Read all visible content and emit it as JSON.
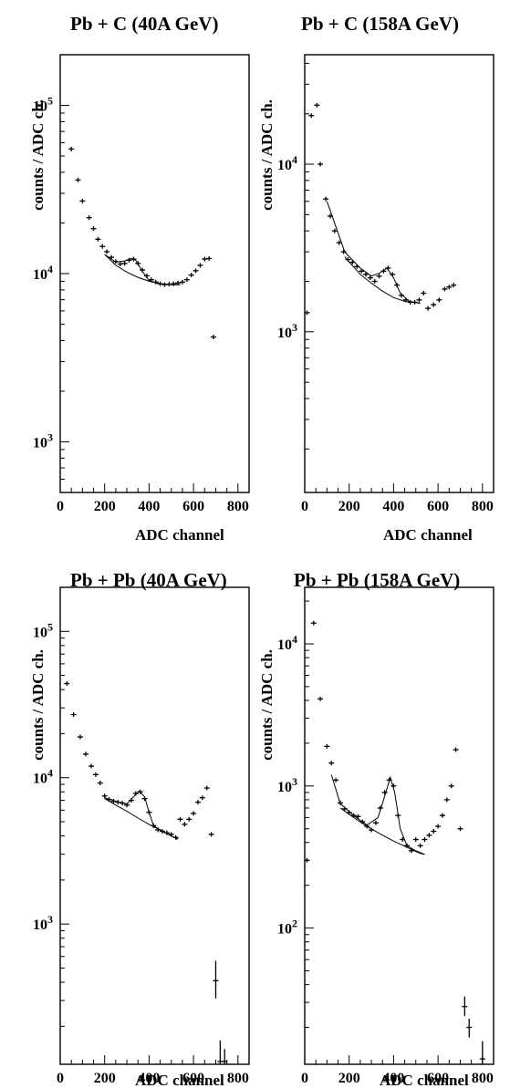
{
  "chart_data": [
    {
      "type": "scatter",
      "title": "Pb + C   (40A GeV)",
      "xlabel": "ADC channel",
      "ylabel": "counts / ADC ch.",
      "xlim": [
        0,
        850
      ],
      "ylim": [
        500,
        200000
      ],
      "yscale": "log",
      "xticks": [
        0,
        200,
        400,
        600,
        800
      ],
      "yticks": [
        {
          "value": 1000,
          "label": "10",
          "exp": "3"
        },
        {
          "value": 10000,
          "label": "10",
          "exp": "4"
        },
        {
          "value": 100000,
          "label": "10",
          "exp": "5"
        }
      ],
      "points": [
        {
          "x": 50,
          "y": 55000
        },
        {
          "x": 80,
          "y": 36000
        },
        {
          "x": 100,
          "y": 27000
        },
        {
          "x": 130,
          "y": 21500
        },
        {
          "x": 150,
          "y": 18500
        },
        {
          "x": 170,
          "y": 16000
        },
        {
          "x": 190,
          "y": 14500
        },
        {
          "x": 210,
          "y": 13500
        },
        {
          "x": 230,
          "y": 12500
        },
        {
          "x": 250,
          "y": 11800
        },
        {
          "x": 270,
          "y": 11400
        },
        {
          "x": 290,
          "y": 11500
        },
        {
          "x": 310,
          "y": 12000
        },
        {
          "x": 330,
          "y": 12200
        },
        {
          "x": 350,
          "y": 11500
        },
        {
          "x": 370,
          "y": 10500
        },
        {
          "x": 390,
          "y": 9700
        },
        {
          "x": 410,
          "y": 9200
        },
        {
          "x": 430,
          "y": 8900
        },
        {
          "x": 450,
          "y": 8700
        },
        {
          "x": 470,
          "y": 8600
        },
        {
          "x": 490,
          "y": 8650
        },
        {
          "x": 510,
          "y": 8700
        },
        {
          "x": 530,
          "y": 8800
        },
        {
          "x": 550,
          "y": 8900
        },
        {
          "x": 570,
          "y": 9200
        },
        {
          "x": 590,
          "y": 9800
        },
        {
          "x": 610,
          "y": 10400
        },
        {
          "x": 630,
          "y": 11200
        },
        {
          "x": 650,
          "y": 12200
        },
        {
          "x": 670,
          "y": 12300
        },
        {
          "x": 690,
          "y": 4200
        }
      ],
      "background": [
        [
          200,
          13000
        ],
        [
          250,
          11200
        ],
        [
          300,
          10200
        ],
        [
          350,
          9500
        ],
        [
          400,
          9000
        ],
        [
          450,
          8700
        ],
        [
          500,
          8600
        ],
        [
          540,
          8600
        ]
      ],
      "fit": [
        [
          200,
          13000
        ],
        [
          250,
          11700
        ],
        [
          290,
          11900
        ],
        [
          320,
          12300
        ],
        [
          340,
          12000
        ],
        [
          370,
          10300
        ],
        [
          400,
          9100
        ],
        [
          450,
          8700
        ],
        [
          500,
          8600
        ],
        [
          540,
          8600
        ]
      ]
    },
    {
      "type": "scatter",
      "title": "Pb + C   (158A GeV)",
      "xlabel": "ADC channel",
      "ylabel": "counts / ADC ch.",
      "xlim": [
        0,
        850
      ],
      "ylim": [
        110,
        45000
      ],
      "yscale": "log",
      "xticks": [
        0,
        200,
        400,
        600,
        800
      ],
      "yticks": [
        {
          "value": 1000,
          "label": "10",
          "exp": "3"
        },
        {
          "value": 10000,
          "label": "10",
          "exp": "4"
        }
      ],
      "points": [
        {
          "x": 10,
          "y": 1300
        },
        {
          "x": 30,
          "y": 19500
        },
        {
          "x": 55,
          "y": 22500
        },
        {
          "x": 70,
          "y": 10000
        },
        {
          "x": 95,
          "y": 6200
        },
        {
          "x": 115,
          "y": 4900
        },
        {
          "x": 135,
          "y": 4000
        },
        {
          "x": 155,
          "y": 3400
        },
        {
          "x": 175,
          "y": 3000
        },
        {
          "x": 195,
          "y": 2700
        },
        {
          "x": 215,
          "y": 2600
        },
        {
          "x": 235,
          "y": 2450
        },
        {
          "x": 255,
          "y": 2300
        },
        {
          "x": 275,
          "y": 2200
        },
        {
          "x": 295,
          "y": 2100
        },
        {
          "x": 315,
          "y": 2000
        },
        {
          "x": 335,
          "y": 2150
        },
        {
          "x": 355,
          "y": 2300
        },
        {
          "x": 375,
          "y": 2400
        },
        {
          "x": 395,
          "y": 2200
        },
        {
          "x": 415,
          "y": 1900
        },
        {
          "x": 435,
          "y": 1650
        },
        {
          "x": 455,
          "y": 1550
        },
        {
          "x": 475,
          "y": 1500
        },
        {
          "x": 495,
          "y": 1500
        },
        {
          "x": 515,
          "y": 1550
        },
        {
          "x": 535,
          "y": 1700
        },
        {
          "x": 555,
          "y": 1380
        },
        {
          "x": 580,
          "y": 1450
        },
        {
          "x": 605,
          "y": 1550
        },
        {
          "x": 630,
          "y": 1800
        },
        {
          "x": 650,
          "y": 1850
        },
        {
          "x": 670,
          "y": 1900
        }
      ],
      "background": [
        [
          180,
          2800
        ],
        [
          250,
          2200
        ],
        [
          300,
          1950
        ],
        [
          350,
          1750
        ],
        [
          400,
          1600
        ],
        [
          450,
          1520
        ],
        [
          520,
          1480
        ]
      ],
      "fit": [
        [
          100,
          6000
        ],
        [
          180,
          3000
        ],
        [
          250,
          2400
        ],
        [
          300,
          2150
        ],
        [
          340,
          2250
        ],
        [
          370,
          2400
        ],
        [
          400,
          2100
        ],
        [
          430,
          1700
        ],
        [
          470,
          1520
        ],
        [
          520,
          1480
        ]
      ]
    },
    {
      "type": "scatter",
      "title": "Pb + Pb   (40A GeV)",
      "xlabel": "ADC channel",
      "ylabel": "counts / ADC ch.",
      "xlim": [
        0,
        850
      ],
      "ylim": [
        110,
        200000
      ],
      "yscale": "log",
      "xticks": [
        0,
        200,
        400,
        600,
        800
      ],
      "yticks": [
        {
          "value": 1000,
          "label": "10",
          "exp": "3"
        },
        {
          "value": 10000,
          "label": "10",
          "exp": "4"
        },
        {
          "value": 100000,
          "label": "10",
          "exp": "5"
        }
      ],
      "points": [
        {
          "x": 30,
          "y": 44000
        },
        {
          "x": 60,
          "y": 27000
        },
        {
          "x": 90,
          "y": 19000
        },
        {
          "x": 115,
          "y": 14500
        },
        {
          "x": 140,
          "y": 12000
        },
        {
          "x": 160,
          "y": 10500
        },
        {
          "x": 180,
          "y": 9200
        },
        {
          "x": 200,
          "y": 7500
        },
        {
          "x": 220,
          "y": 7100
        },
        {
          "x": 240,
          "y": 6900
        },
        {
          "x": 260,
          "y": 6800
        },
        {
          "x": 280,
          "y": 6700
        },
        {
          "x": 300,
          "y": 6500
        },
        {
          "x": 320,
          "y": 7000
        },
        {
          "x": 340,
          "y": 7800
        },
        {
          "x": 360,
          "y": 8000
        },
        {
          "x": 380,
          "y": 7200
        },
        {
          "x": 400,
          "y": 5800
        },
        {
          "x": 420,
          "y": 4700
        },
        {
          "x": 440,
          "y": 4400
        },
        {
          "x": 460,
          "y": 4300
        },
        {
          "x": 480,
          "y": 4200
        },
        {
          "x": 500,
          "y": 4100
        },
        {
          "x": 520,
          "y": 3900
        },
        {
          "x": 540,
          "y": 5200
        },
        {
          "x": 560,
          "y": 4800
        },
        {
          "x": 580,
          "y": 5200
        },
        {
          "x": 600,
          "y": 5700
        },
        {
          "x": 620,
          "y": 6800
        },
        {
          "x": 640,
          "y": 7300
        },
        {
          "x": 660,
          "y": 8500
        },
        {
          "x": 680,
          "y": 4100
        },
        {
          "x": 700,
          "y": 410,
          "err": [
            310,
            560
          ]
        },
        {
          "x": 720,
          "y": 115,
          "err": [
            110,
            160
          ]
        },
        {
          "x": 740,
          "y": 115,
          "err": [
            110,
            140
          ]
        }
      ],
      "background": [
        [
          200,
          7200
        ],
        [
          250,
          6500
        ],
        [
          300,
          5900
        ],
        [
          350,
          5300
        ],
        [
          400,
          4800
        ],
        [
          450,
          4400
        ],
        [
          500,
          4000
        ],
        [
          530,
          3800
        ]
      ],
      "fit": [
        [
          200,
          7300
        ],
        [
          250,
          6900
        ],
        [
          300,
          6600
        ],
        [
          330,
          7400
        ],
        [
          355,
          8100
        ],
        [
          380,
          7400
        ],
        [
          400,
          5800
        ],
        [
          420,
          4700
        ],
        [
          460,
          4300
        ],
        [
          500,
          4000
        ],
        [
          530,
          3800
        ]
      ]
    },
    {
      "type": "scatter",
      "title": "Pb + Pb   (158A GeV)",
      "xlabel": "ADC channel",
      "ylabel": "counts / ADC ch.",
      "xlim": [
        0,
        850
      ],
      "ylim": [
        11,
        25000
      ],
      "yscale": "log",
      "xticks": [
        0,
        200,
        400,
        600,
        800
      ],
      "yticks": [
        {
          "value": 100,
          "label": "10",
          "exp": "2"
        },
        {
          "value": 1000,
          "label": "10",
          "exp": "3"
        },
        {
          "value": 10000,
          "label": "10",
          "exp": "4"
        }
      ],
      "points": [
        {
          "x": 10,
          "y": 300
        },
        {
          "x": 40,
          "y": 14000
        },
        {
          "x": 70,
          "y": 4100
        },
        {
          "x": 100,
          "y": 1900
        },
        {
          "x": 120,
          "y": 1450
        },
        {
          "x": 140,
          "y": 1100
        },
        {
          "x": 160,
          "y": 760
        },
        {
          "x": 180,
          "y": 690
        },
        {
          "x": 200,
          "y": 650
        },
        {
          "x": 220,
          "y": 620
        },
        {
          "x": 240,
          "y": 610
        },
        {
          "x": 260,
          "y": 560
        },
        {
          "x": 280,
          "y": 520
        },
        {
          "x": 300,
          "y": 490
        },
        {
          "x": 320,
          "y": 550
        },
        {
          "x": 340,
          "y": 700
        },
        {
          "x": 360,
          "y": 900
        },
        {
          "x": 380,
          "y": 1100
        },
        {
          "x": 400,
          "y": 1000
        },
        {
          "x": 420,
          "y": 620
        },
        {
          "x": 440,
          "y": 420
        },
        {
          "x": 460,
          "y": 380
        },
        {
          "x": 480,
          "y": 350
        },
        {
          "x": 500,
          "y": 420
        },
        {
          "x": 520,
          "y": 380
        },
        {
          "x": 540,
          "y": 420
        },
        {
          "x": 560,
          "y": 450
        },
        {
          "x": 580,
          "y": 480
        },
        {
          "x": 600,
          "y": 520
        },
        {
          "x": 620,
          "y": 620
        },
        {
          "x": 640,
          "y": 800
        },
        {
          "x": 660,
          "y": 1000
        },
        {
          "x": 680,
          "y": 1800
        },
        {
          "x": 700,
          "y": 500
        },
        {
          "x": 720,
          "y": 28,
          "err": [
            24,
            33
          ]
        },
        {
          "x": 740,
          "y": 20,
          "err": [
            17,
            23
          ]
        },
        {
          "x": 800,
          "y": 12,
          "err": [
            11,
            16
          ]
        }
      ],
      "background": [
        [
          160,
          700
        ],
        [
          220,
          600
        ],
        [
          280,
          520
        ],
        [
          340,
          460
        ],
        [
          400,
          410
        ],
        [
          460,
          370
        ],
        [
          520,
          335
        ],
        [
          540,
          330
        ]
      ],
      "fit": [
        [
          120,
          1200
        ],
        [
          160,
          750
        ],
        [
          220,
          620
        ],
        [
          280,
          530
        ],
        [
          330,
          600
        ],
        [
          360,
          850
        ],
        [
          385,
          1150
        ],
        [
          405,
          900
        ],
        [
          430,
          500
        ],
        [
          460,
          380
        ],
        [
          500,
          350
        ],
        [
          540,
          330
        ]
      ]
    }
  ]
}
